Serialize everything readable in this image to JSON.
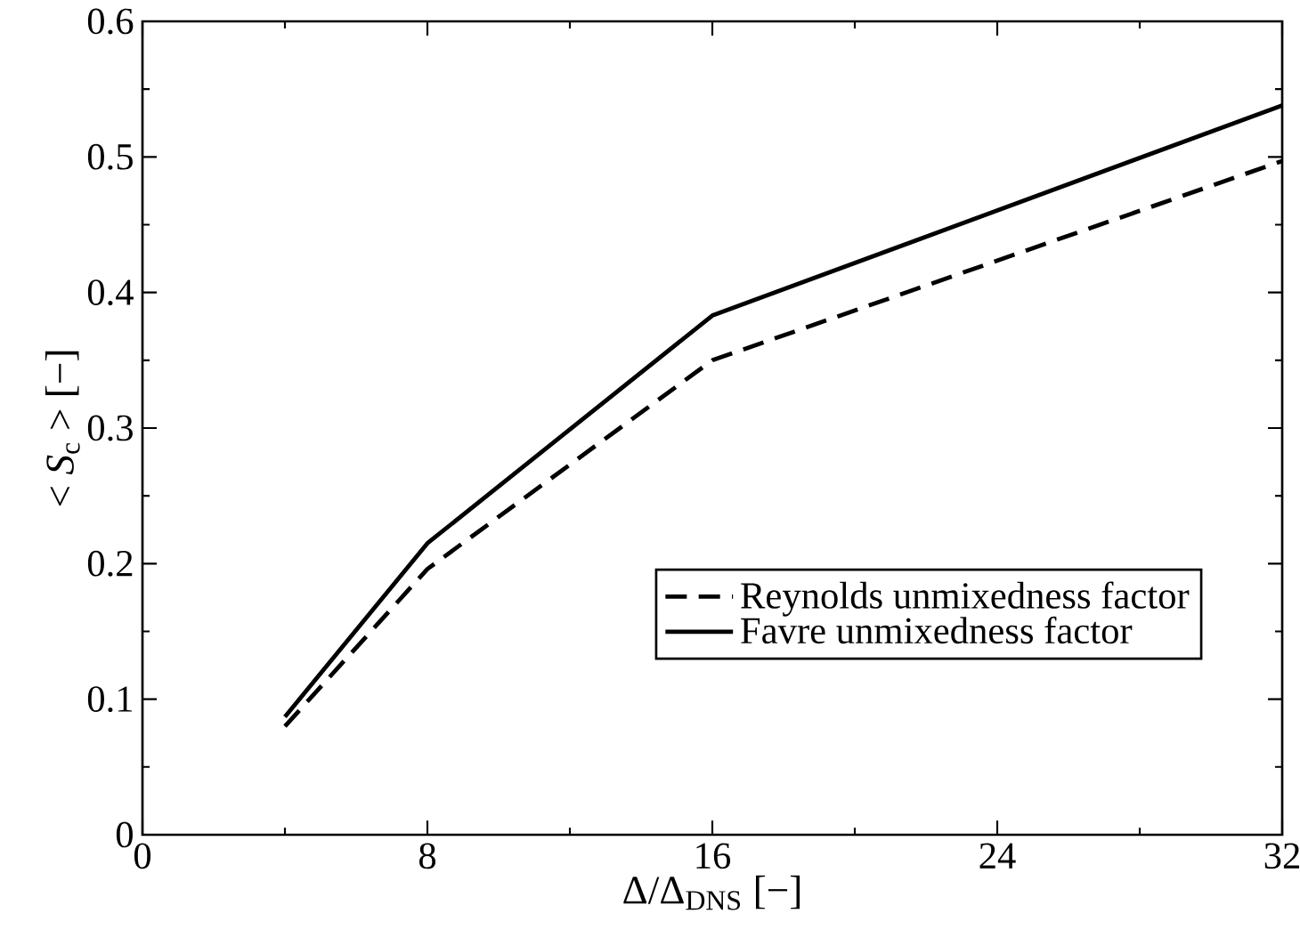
{
  "chart_data": {
    "type": "line",
    "xlabel": "Δ/Δ$_{DNS}$ [−]",
    "ylabel": "< *S*$_{c}$ > [−]",
    "x": [
      4,
      8,
      16,
      32
    ],
    "series": [
      {
        "name": "Reynolds unmixedness factor",
        "color": "#000000",
        "line_style": "dashed",
        "values": [
          0.08,
          0.196,
          0.35,
          0.497
        ]
      },
      {
        "name": "Favre unmixedness factor",
        "color": "#000000",
        "line_style": "solid",
        "values": [
          0.087,
          0.215,
          0.383,
          0.538
        ]
      }
    ],
    "xlim": [
      0,
      32
    ],
    "xticks": [
      0,
      8,
      16,
      24,
      32
    ],
    "ylim": [
      0,
      0.6
    ],
    "yticks": [
      0,
      0.1,
      0.2,
      0.3,
      0.4,
      0.5,
      0.6
    ],
    "grid": false,
    "legend": "bottom right",
    "marker": "none"
  }
}
